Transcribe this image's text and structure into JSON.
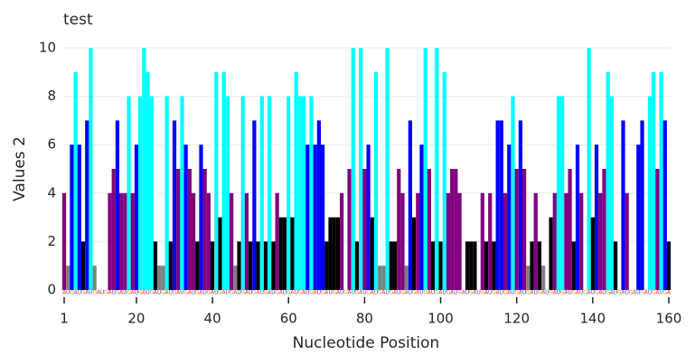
{
  "chart_data": {
    "type": "bar",
    "title": "test",
    "x_label": "Nucleotide Position",
    "y_label": "Values 2",
    "x": [
      1,
      2,
      3,
      4,
      5,
      6,
      7,
      8,
      9,
      10,
      11,
      12,
      13,
      14,
      15,
      16,
      17,
      18,
      19,
      20,
      21,
      22,
      23,
      24,
      25,
      26,
      27,
      28,
      29,
      30,
      31,
      32,
      33,
      34,
      35,
      36,
      37,
      38,
      39,
      40,
      41,
      42,
      43,
      44,
      45,
      46,
      47,
      48,
      49,
      50,
      51,
      52,
      53,
      54,
      55,
      56,
      57,
      58,
      59,
      60,
      61,
      62,
      63,
      64,
      65,
      66,
      67,
      68,
      69,
      70,
      71,
      72,
      73,
      74,
      75,
      76,
      77,
      78,
      79,
      80,
      81,
      82,
      83,
      84,
      85,
      86,
      87,
      88,
      89,
      90,
      91,
      92,
      93,
      94,
      95,
      96,
      97,
      98,
      99,
      100,
      101,
      102,
      103,
      104,
      105,
      106,
      107,
      108,
      109,
      110,
      111,
      112,
      113,
      114,
      115,
      116,
      117,
      118,
      119,
      120,
      121,
      122,
      123,
      124,
      125,
      126,
      127,
      128,
      129,
      130,
      131,
      132,
      133,
      134,
      135,
      136,
      137,
      138,
      139,
      140,
      141,
      142,
      143,
      144,
      145,
      146,
      147,
      148,
      149,
      150,
      151,
      152,
      153,
      154,
      155,
      156,
      157,
      158,
      159,
      160
    ],
    "values": [
      4,
      1,
      6,
      9,
      6,
      2,
      7,
      10,
      1,
      0,
      0,
      0,
      4,
      5,
      7,
      4,
      4,
      8,
      4,
      6,
      8,
      10,
      9,
      8,
      2,
      1,
      1,
      8,
      2,
      7,
      5,
      8,
      6,
      5,
      4,
      2,
      6,
      5,
      4,
      2,
      9,
      3,
      9,
      8,
      4,
      1,
      2,
      8,
      4,
      2,
      7,
      2,
      8,
      2,
      8,
      2,
      4,
      3,
      3,
      8,
      3,
      9,
      8,
      8,
      6,
      8,
      6,
      7,
      6,
      2,
      3,
      3,
      3,
      4,
      0,
      5,
      10,
      2,
      10,
      5,
      6,
      3,
      9,
      1,
      1,
      10,
      2,
      2,
      5,
      4,
      1,
      7,
      3,
      4,
      6,
      10,
      5,
      2,
      10,
      2,
      9,
      4,
      5,
      5,
      4,
      0,
      2,
      2,
      2,
      0,
      4,
      2,
      4,
      2,
      7,
      7,
      4,
      6,
      8,
      5,
      7,
      5,
      1,
      2,
      4,
      2,
      1,
      0,
      3,
      4,
      8,
      8,
      4,
      5,
      2,
      6,
      4,
      0,
      10,
      3,
      6,
      4,
      5,
      9,
      8,
      2,
      0,
      7,
      4,
      0,
      0,
      6,
      7,
      0,
      8,
      9,
      5,
      9,
      7,
      2
    ],
    "sequence": "AUGAUGAUGAUGAUGAUGAUGAUGAUGAUGAUGAUGAUGAUGAUGAUGAUGAUGAUGAUGAUGAUGAUGAUGAUGAUGAUGAUGAUGAUGAUGAUGAUGAUGAUGAUGAUGAUGAUGAUGAUGAUGAUGAUGAUGAUGAUGAUGAUGAUGAUGAUGAUGA",
    "sequence_colors": {
      "A": "#e03030",
      "U": "#3050d0",
      "G": "#e08a20"
    },
    "color_steps": [
      {
        "max": 1,
        "color": "#808080"
      },
      {
        "max": 3,
        "color": "#000000"
      },
      {
        "max": 5,
        "color": "#800080"
      },
      {
        "max": 7,
        "color": "#0000ff"
      },
      {
        "max": 10,
        "color": "#00ffff"
      }
    ],
    "xlim": [
      1,
      160
    ],
    "xticks": [
      1,
      20,
      40,
      60,
      80,
      100,
      120,
      140,
      160
    ],
    "ylim": [
      0,
      10
    ],
    "yticks": [
      0,
      2,
      4,
      6,
      8,
      10
    ],
    "grid": true
  }
}
